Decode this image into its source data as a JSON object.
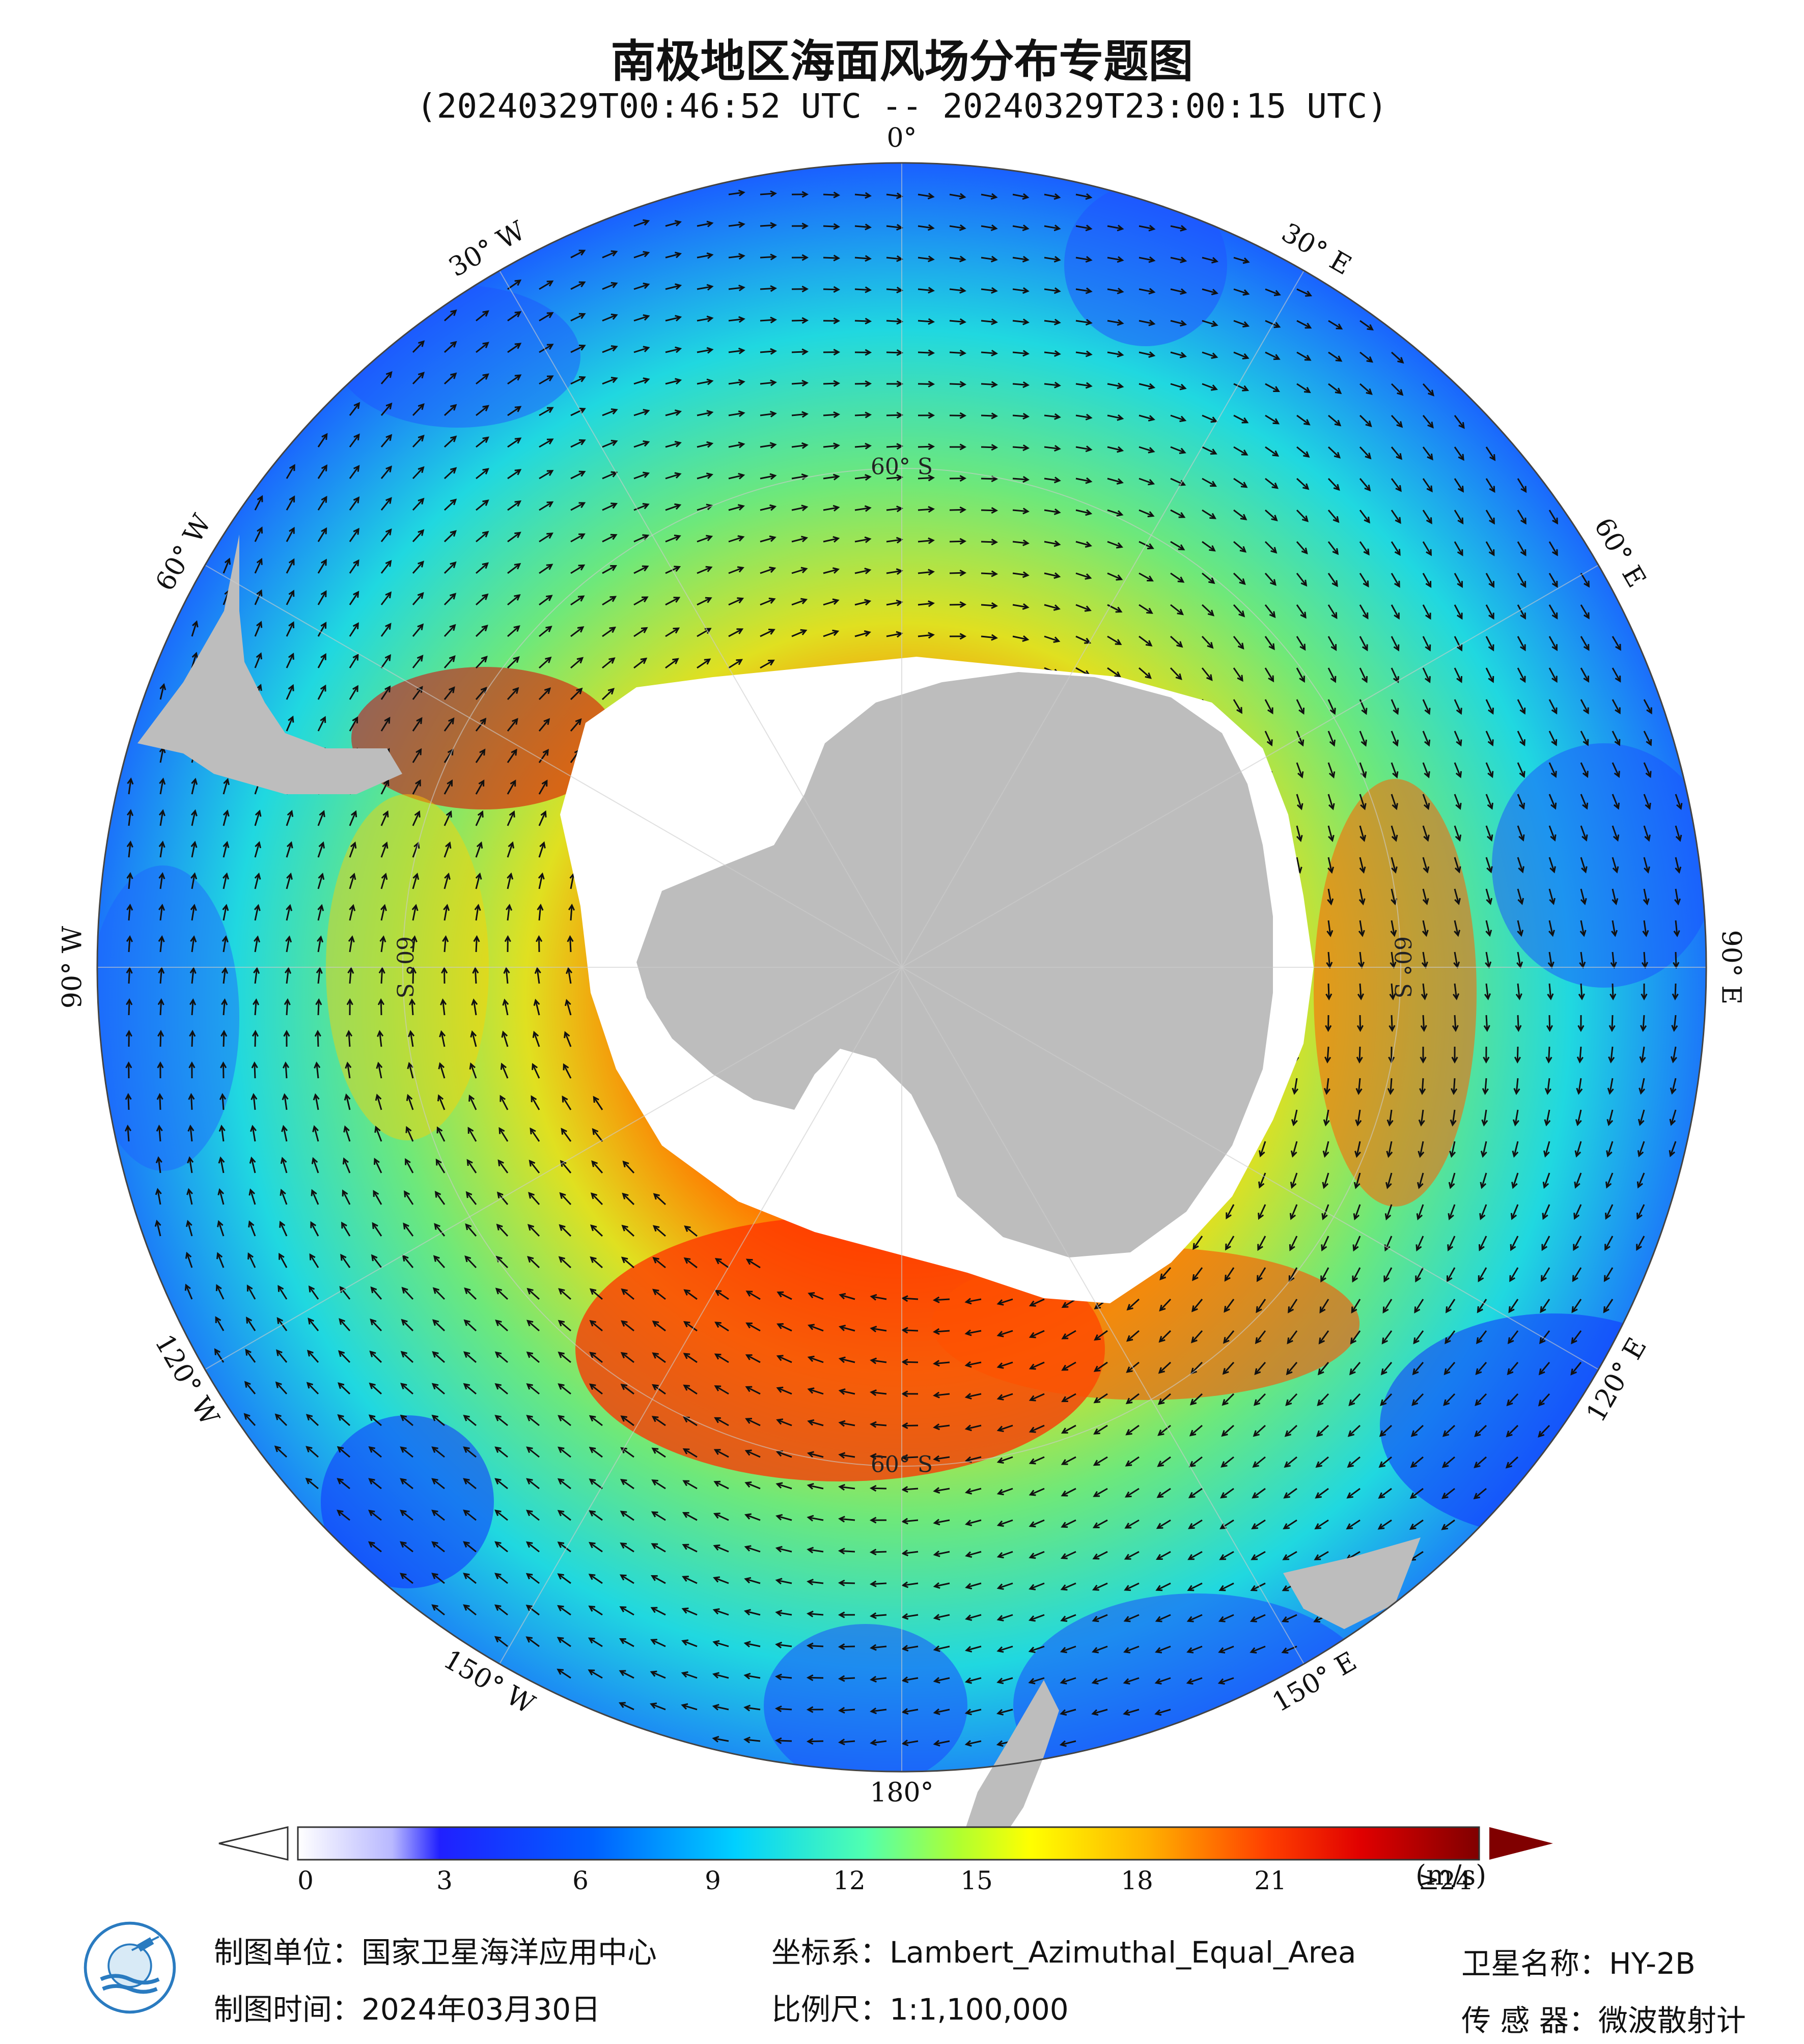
{
  "header": {
    "title": "南极地区海面风场分布专题图",
    "subtitle": "(20240329T00:46:52 UTC -- 20240329T23:00:15 UTC)"
  },
  "map": {
    "projection": "Lambert_Azimuthal_Equal_Area",
    "center": "South Pole",
    "longitude_labels": [
      {
        "text": "0°",
        "lon": 0
      },
      {
        "text": "30° E",
        "lon": 30
      },
      {
        "text": "60° E",
        "lon": 60
      },
      {
        "text": "90° E",
        "lon": 90
      },
      {
        "text": "120° E",
        "lon": 120
      },
      {
        "text": "150° E",
        "lon": 150
      },
      {
        "text": "180°",
        "lon": 180
      },
      {
        "text": "150° W",
        "lon": -150
      },
      {
        "text": "120° W",
        "lon": -120
      },
      {
        "text": "90° W",
        "lon": -90
      },
      {
        "text": "60° W",
        "lon": -60
      },
      {
        "text": "30° W",
        "lon": -30
      }
    ],
    "latitude_labels": [
      {
        "text": "60° S",
        "lon": 0
      },
      {
        "text": "60° S",
        "lon": 90
      },
      {
        "text": "60° S",
        "lon": 180
      },
      {
        "text": "60° S",
        "lon": -90
      }
    ],
    "colors": {
      "land": "#bdbdbd",
      "ice": "#ffffff",
      "arrow": "#111111",
      "graticule": "#cccccc"
    }
  },
  "colorbar": {
    "ticks": [
      "0",
      "3",
      "6",
      "9",
      "12",
      "15",
      "18",
      "21",
      "≥24"
    ],
    "unit": "(m/s)",
    "colors": [
      "#ffffff",
      "#b8b8ff",
      "#0000ff",
      "#0064ff",
      "#00c8ff",
      "#40ffc0",
      "#a0ff40",
      "#ffff00",
      "#ffb000",
      "#ff5000",
      "#e00000",
      "#800000"
    ]
  },
  "footer": {
    "org": "制图单位：国家卫星海洋应用中心",
    "date": "制图时间：2024年03月30日",
    "crs": "坐标系：Lambert_Azimuthal_Equal_Area",
    "scale": "比例尺：1:1,100,000",
    "satellite": "卫星名称：HY-2B",
    "sensor": "传 感 器：微波散射计"
  },
  "logo": {
    "icon": "nsoas-logo-icon"
  }
}
